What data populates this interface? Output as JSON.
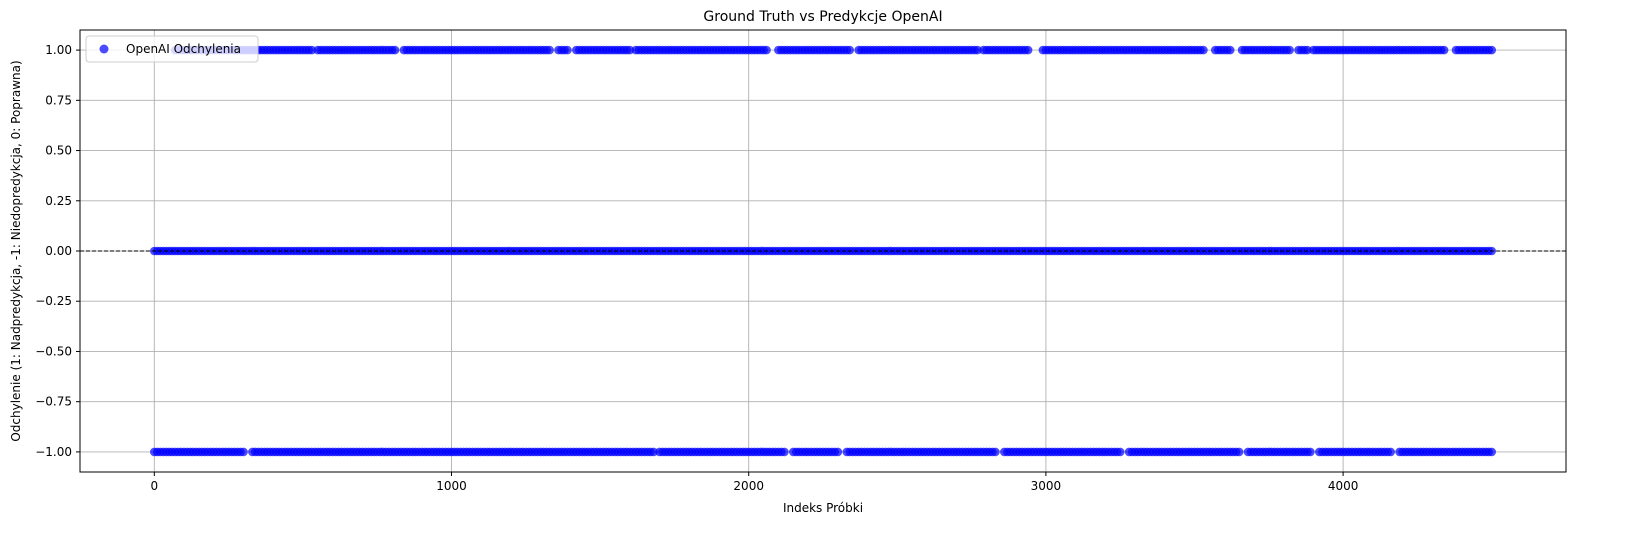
{
  "chart_data": {
    "type": "scatter",
    "title": "Ground Truth vs Predykcje OpenAI",
    "xlabel": "Indeks Próbki",
    "ylabel": "Odchylenie (1: Nadpredykcja, -1: Niedopredykcja, 0: Poprawna)",
    "xlim": [
      -250,
      4750
    ],
    "ylim": [
      -1.1,
      1.1
    ],
    "xticks": [
      0,
      1000,
      2000,
      3000,
      4000
    ],
    "xtick_labels": [
      "0",
      "1000",
      "2000",
      "3000",
      "4000"
    ],
    "yticks": [
      1.0,
      0.75,
      0.5,
      0.25,
      0.0,
      -0.25,
      -0.5,
      -0.75,
      -1.0
    ],
    "ytick_labels": [
      "1.00",
      "0.75",
      "0.50",
      "0.25",
      "0.00",
      "−0.25",
      "−0.50",
      "−0.75",
      "−1.00"
    ],
    "grid": true,
    "legend_position": "top-left",
    "reference_line": {
      "y": 0,
      "style": "dashed",
      "color": "#000000"
    },
    "colors": {
      "marker": "#0000ff"
    },
    "series": [
      {
        "name": "OpenAI Odchylenia",
        "color": "#0000ff",
        "bands": [
          {
            "y": 1,
            "x_ranges": [
              [
                70,
                530
              ],
              [
                550,
                810
              ],
              [
                840,
                950
              ],
              [
                960,
                1330
              ],
              [
                1360,
                1390
              ],
              [
                1420,
                1600
              ],
              [
                1620,
                2060
              ],
              [
                2100,
                2340
              ],
              [
                2370,
                2770
              ],
              [
                2790,
                2940
              ],
              [
                2990,
                3530
              ],
              [
                3570,
                3620
              ],
              [
                3660,
                3820
              ],
              [
                3850,
                3880
              ],
              [
                3900,
                4340
              ],
              [
                4380,
                4500
              ]
            ]
          },
          {
            "y": 0,
            "x_ranges": [
              [
                0,
                4500
              ]
            ]
          },
          {
            "y": -1,
            "x_ranges": [
              [
                0,
                300
              ],
              [
                330,
                1190
              ],
              [
                1200,
                1680
              ],
              [
                1700,
                2120
              ],
              [
                2150,
                2300
              ],
              [
                2330,
                2830
              ],
              [
                2860,
                3250
              ],
              [
                3280,
                3650
              ],
              [
                3680,
                3890
              ],
              [
                3920,
                4160
              ],
              [
                4190,
                4500
              ]
            ]
          }
        ]
      }
    ]
  }
}
